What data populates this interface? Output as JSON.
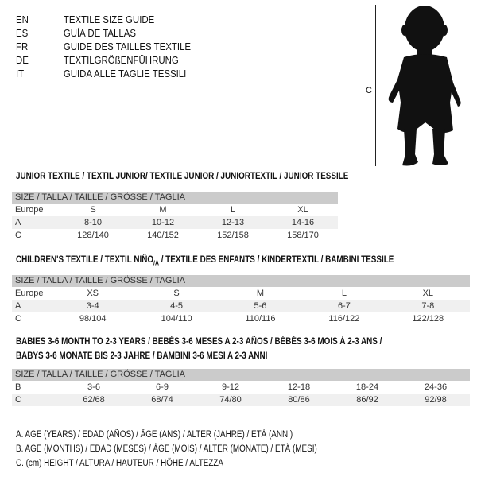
{
  "languages": [
    {
      "code": "EN",
      "text": "TEXTILE SIZE GUIDE"
    },
    {
      "code": "ES",
      "text": "GUÍA DE TALLAS"
    },
    {
      "code": "FR",
      "text": "GUIDE DES TAILLES TEXTILE"
    },
    {
      "code": "DE",
      "text": "TEXTILGRÖßENFÜHRUNG"
    },
    {
      "code": "IT",
      "text": "GUIDA ALLE TAGLIE TESSILI"
    }
  ],
  "figure": {
    "icon": "child-silhouette-icon",
    "height_label": "C"
  },
  "size_header": "SIZE / TALLA / TAILLE / GRÖSSE / TAGLIA",
  "junior": {
    "title": "JUNIOR TEXTILE / TEXTIL JUNIOR/ TEXTILE JUNIOR / JUNIORTEXTIL / JUNIOR TESSILE",
    "rows": [
      {
        "label": "Europe",
        "values": [
          "S",
          "M",
          "L",
          "XL"
        ]
      },
      {
        "label": "A",
        "values": [
          "8-10",
          "10-12",
          "12-13",
          "14-16"
        ]
      },
      {
        "label": "C",
        "values": [
          "128/140",
          "140/152",
          "152/158",
          "158/170"
        ]
      }
    ]
  },
  "children": {
    "title_a": "CHILDREN'S TEXTILE / TEXTIL NIÑO",
    "title_sub": "/A",
    "title_b": " / TEXTILE DES ENFANTS / KINDERTEXTIL / BAMBINI TESSILE",
    "rows": [
      {
        "label": "Europe",
        "values": [
          "XS",
          "S",
          "M",
          "L",
          "XL"
        ]
      },
      {
        "label": "A",
        "values": [
          "3-4",
          "4-5",
          "5-6",
          "6-7",
          "7-8"
        ]
      },
      {
        "label": "C",
        "values": [
          "98/104",
          "104/110",
          "110/116",
          "116/122",
          "122/128"
        ]
      }
    ]
  },
  "babies": {
    "title_line1": "BABIES 3-6 MONTH TO 2-3 YEARS / BEBÉS 3-6 MESES A 2-3 AÑOS / BÉBÉS 3-6 MOIS À 2-3 ANS /",
    "title_line2": "BABYS 3-6 MONATE BIS 2-3 JAHRE / BAMBINI 3-6 MESI A 2-3 ANNI",
    "rows": [
      {
        "label": "B",
        "values": [
          "3-6",
          "6-9",
          "9-12",
          "12-18",
          "18-24",
          "24-36"
        ]
      },
      {
        "label": "C",
        "values": [
          "62/68",
          "68/74",
          "74/80",
          "80/86",
          "86/92",
          "92/98"
        ]
      }
    ]
  },
  "legend": [
    "A. AGE (YEARS) / EDAD (AÑOS) / ÂGE (ANS) / ALTER (JAHRE) / ETÀ (ANNI)",
    "B. AGE (MONTHS) / EDAD (MESES) / ÂGE (MOIS) / ALTER (MONATE) / ETÀ (MESI)",
    "C. (cm) HEIGHT / ALTURA / HAUTEUR / HÖHE / ALTEZZA"
  ]
}
